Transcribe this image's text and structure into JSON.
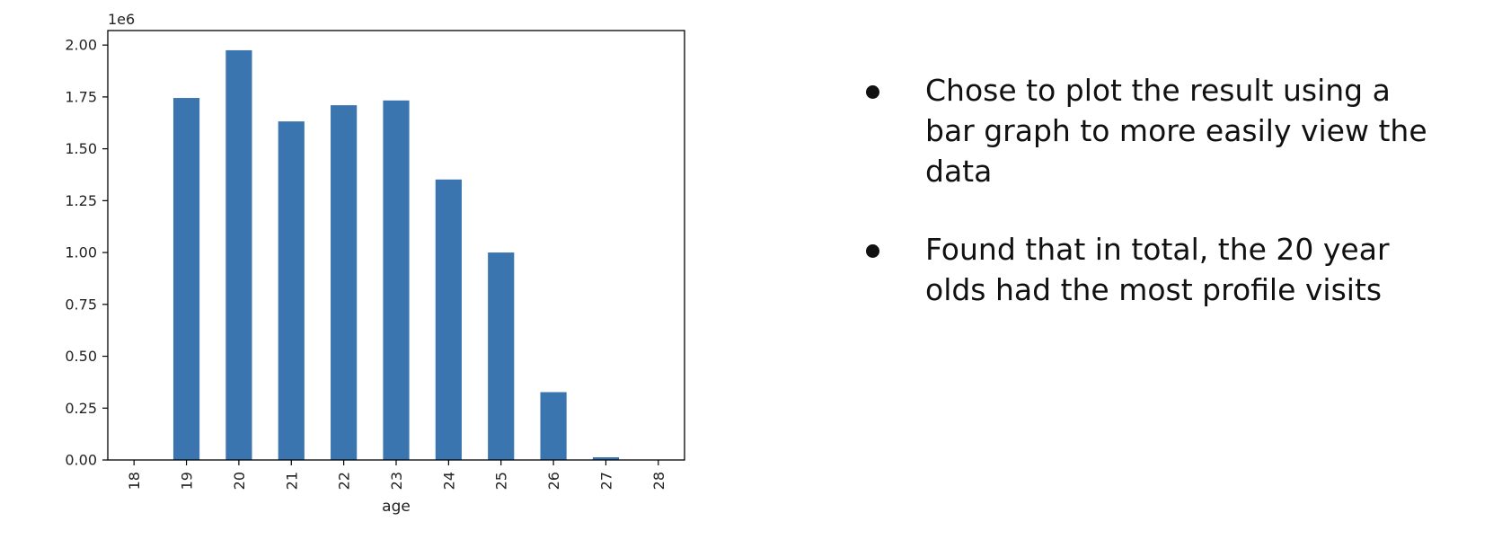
{
  "chart_data": {
    "type": "bar",
    "categories": [
      "18",
      "19",
      "20",
      "21",
      "22",
      "23",
      "24",
      "25",
      "26",
      "27",
      "28"
    ],
    "values": [
      0,
      1745000,
      1975000,
      1632000,
      1710000,
      1733000,
      1352000,
      1000000,
      327000,
      13000,
      0
    ],
    "title": "",
    "xlabel": "age",
    "ylabel": "",
    "y_offset_label": "1e6",
    "y_scale": 1000000,
    "ylim": [
      0,
      2070000
    ],
    "yticks": [
      0,
      0.25,
      0.5,
      0.75,
      1.0,
      1.25,
      1.5,
      1.75,
      2.0
    ],
    "ytick_labels": [
      "0.00",
      "0.25",
      "0.50",
      "0.75",
      "1.00",
      "1.25",
      "1.50",
      "1.75",
      "2.00"
    ],
    "xtick_rotation": "vertical",
    "grid": false,
    "legend": "none",
    "bar_color": "#3a75b0"
  },
  "bullets": [
    "Chose to plot the result using a bar graph to more easily view the data",
    "Found that in total, the 20 year olds had the most profile visits"
  ]
}
